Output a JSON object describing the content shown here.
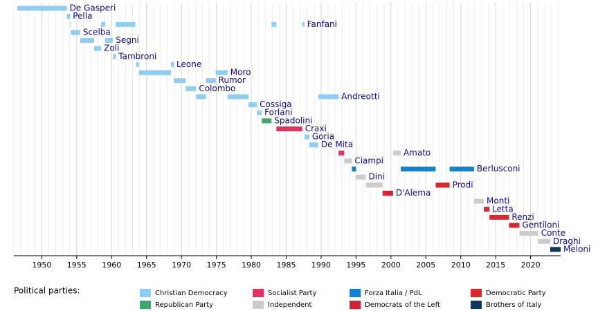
{
  "chart_data": {
    "type": "timeline",
    "xlim": [
      1946,
      2024.3
    ],
    "xticks": [
      1950,
      1955,
      1960,
      1965,
      1970,
      1975,
      1980,
      1985,
      1990,
      1995,
      2000,
      2005,
      2010,
      2015,
      2020
    ],
    "minor_grid": true,
    "legend_title": "Political parties:",
    "parties": [
      {
        "name": "Christian Democracy",
        "color": "#8dcff4"
      },
      {
        "name": "Republican Party",
        "color": "#3aaa6c"
      },
      {
        "name": "Socialist Party",
        "color": "#e8305f"
      },
      {
        "name": "Independent",
        "color": "#cccccc"
      },
      {
        "name": "Forza Italia / PdL",
        "color": "#0a84d8"
      },
      {
        "name": "Democrats of the Left",
        "color": "#d42032"
      },
      {
        "name": "Democratic Party",
        "color": "#e0262d"
      },
      {
        "name": "Brothers of Italy",
        "color": "#0b3a5e"
      }
    ],
    "rows": [
      {
        "name": "De Gasperi",
        "terms": [
          {
            "start": 1946.5,
            "end": 1953.6,
            "party": 0
          }
        ]
      },
      {
        "name": "Pella",
        "terms": [
          {
            "start": 1953.6,
            "end": 1954.05,
            "party": 0
          }
        ]
      },
      {
        "name": "Fanfani",
        "terms": [
          {
            "start": 1954.05,
            "end": 1954.15,
            "party": 0
          },
          {
            "start": 1958.5,
            "end": 1959.1,
            "party": 0
          },
          {
            "start": 1960.6,
            "end": 1963.4,
            "party": 0
          },
          {
            "start": 1982.9,
            "end": 1983.6,
            "party": 0
          },
          {
            "start": 1987.3,
            "end": 1987.6,
            "party": 0
          }
        ]
      },
      {
        "name": "Scelba",
        "terms": [
          {
            "start": 1954.15,
            "end": 1955.5,
            "party": 0
          }
        ]
      },
      {
        "name": "Segni",
        "terms": [
          {
            "start": 1955.5,
            "end": 1957.5,
            "party": 0
          },
          {
            "start": 1959.1,
            "end": 1960.2,
            "party": 0
          }
        ]
      },
      {
        "name": "Zoli",
        "terms": [
          {
            "start": 1957.5,
            "end": 1958.5,
            "party": 0
          }
        ]
      },
      {
        "name": "Tambroni",
        "terms": [
          {
            "start": 1960.2,
            "end": 1960.6,
            "party": 0
          }
        ]
      },
      {
        "name": "Leone",
        "terms": [
          {
            "start": 1963.5,
            "end": 1963.9,
            "party": 0
          },
          {
            "start": 1968.5,
            "end": 1968.9,
            "party": 0
          }
        ]
      },
      {
        "name": "Moro",
        "terms": [
          {
            "start": 1963.9,
            "end": 1968.5,
            "party": 0
          },
          {
            "start": 1974.9,
            "end": 1976.6,
            "party": 0
          }
        ]
      },
      {
        "name": "Rumor",
        "terms": [
          {
            "start": 1968.9,
            "end": 1970.6,
            "party": 0
          },
          {
            "start": 1973.5,
            "end": 1974.9,
            "party": 0
          }
        ]
      },
      {
        "name": "Colombo",
        "terms": [
          {
            "start": 1970.6,
            "end": 1972.1,
            "party": 0
          }
        ]
      },
      {
        "name": "Andreotti",
        "terms": [
          {
            "start": 1972.1,
            "end": 1973.5,
            "party": 0
          },
          {
            "start": 1976.6,
            "end": 1979.6,
            "party": 0
          },
          {
            "start": 1989.6,
            "end": 1992.5,
            "party": 0
          }
        ]
      },
      {
        "name": "Cossiga",
        "terms": [
          {
            "start": 1979.6,
            "end": 1980.8,
            "party": 0
          }
        ]
      },
      {
        "name": "Forlani",
        "terms": [
          {
            "start": 1980.8,
            "end": 1981.5,
            "party": 0
          }
        ]
      },
      {
        "name": "Spadolini",
        "terms": [
          {
            "start": 1981.5,
            "end": 1982.9,
            "party": 1
          }
        ]
      },
      {
        "name": "Craxi",
        "terms": [
          {
            "start": 1983.6,
            "end": 1987.3,
            "party": 2
          }
        ]
      },
      {
        "name": "Goria",
        "terms": [
          {
            "start": 1987.6,
            "end": 1988.3,
            "party": 0
          }
        ]
      },
      {
        "name": "De Mita",
        "terms": [
          {
            "start": 1988.3,
            "end": 1989.6,
            "party": 0
          }
        ]
      },
      {
        "name": "Amato",
        "terms": [
          {
            "start": 1992.5,
            "end": 1993.3,
            "party": 2
          },
          {
            "start": 2000.3,
            "end": 2001.4,
            "party": 3
          }
        ]
      },
      {
        "name": "Ciampi",
        "terms": [
          {
            "start": 1993.3,
            "end": 1994.4,
            "party": 3
          }
        ]
      },
      {
        "name": "Berlusconi",
        "terms": [
          {
            "start": 1994.4,
            "end": 1995.0,
            "party": 4
          },
          {
            "start": 2001.4,
            "end": 2006.4,
            "party": 4
          },
          {
            "start": 2008.4,
            "end": 2011.9,
            "party": 4
          }
        ]
      },
      {
        "name": "Dini",
        "terms": [
          {
            "start": 1995.0,
            "end": 1996.4,
            "party": 3
          }
        ]
      },
      {
        "name": "Prodi",
        "terms": [
          {
            "start": 1996.4,
            "end": 1998.8,
            "party": 3
          },
          {
            "start": 2006.4,
            "end": 2008.4,
            "party": 6
          }
        ]
      },
      {
        "name": "D'Alema",
        "terms": [
          {
            "start": 1998.8,
            "end": 2000.3,
            "party": 5
          }
        ]
      },
      {
        "name": "Monti",
        "terms": [
          {
            "start": 2011.9,
            "end": 2013.3,
            "party": 3
          }
        ]
      },
      {
        "name": "Letta",
        "terms": [
          {
            "start": 2013.3,
            "end": 2014.1,
            "party": 6
          }
        ]
      },
      {
        "name": "Renzi",
        "terms": [
          {
            "start": 2014.1,
            "end": 2016.9,
            "party": 6
          }
        ]
      },
      {
        "name": "Gentiloni",
        "terms": [
          {
            "start": 2016.9,
            "end": 2018.4,
            "party": 6
          }
        ]
      },
      {
        "name": "Conte",
        "terms": [
          {
            "start": 2018.4,
            "end": 2021.1,
            "party": 3
          }
        ]
      },
      {
        "name": "Draghi",
        "terms": [
          {
            "start": 2021.1,
            "end": 2022.8,
            "party": 3
          }
        ]
      },
      {
        "name": "Meloni",
        "terms": [
          {
            "start": 2022.8,
            "end": 2024.3,
            "party": 7
          }
        ]
      }
    ]
  }
}
